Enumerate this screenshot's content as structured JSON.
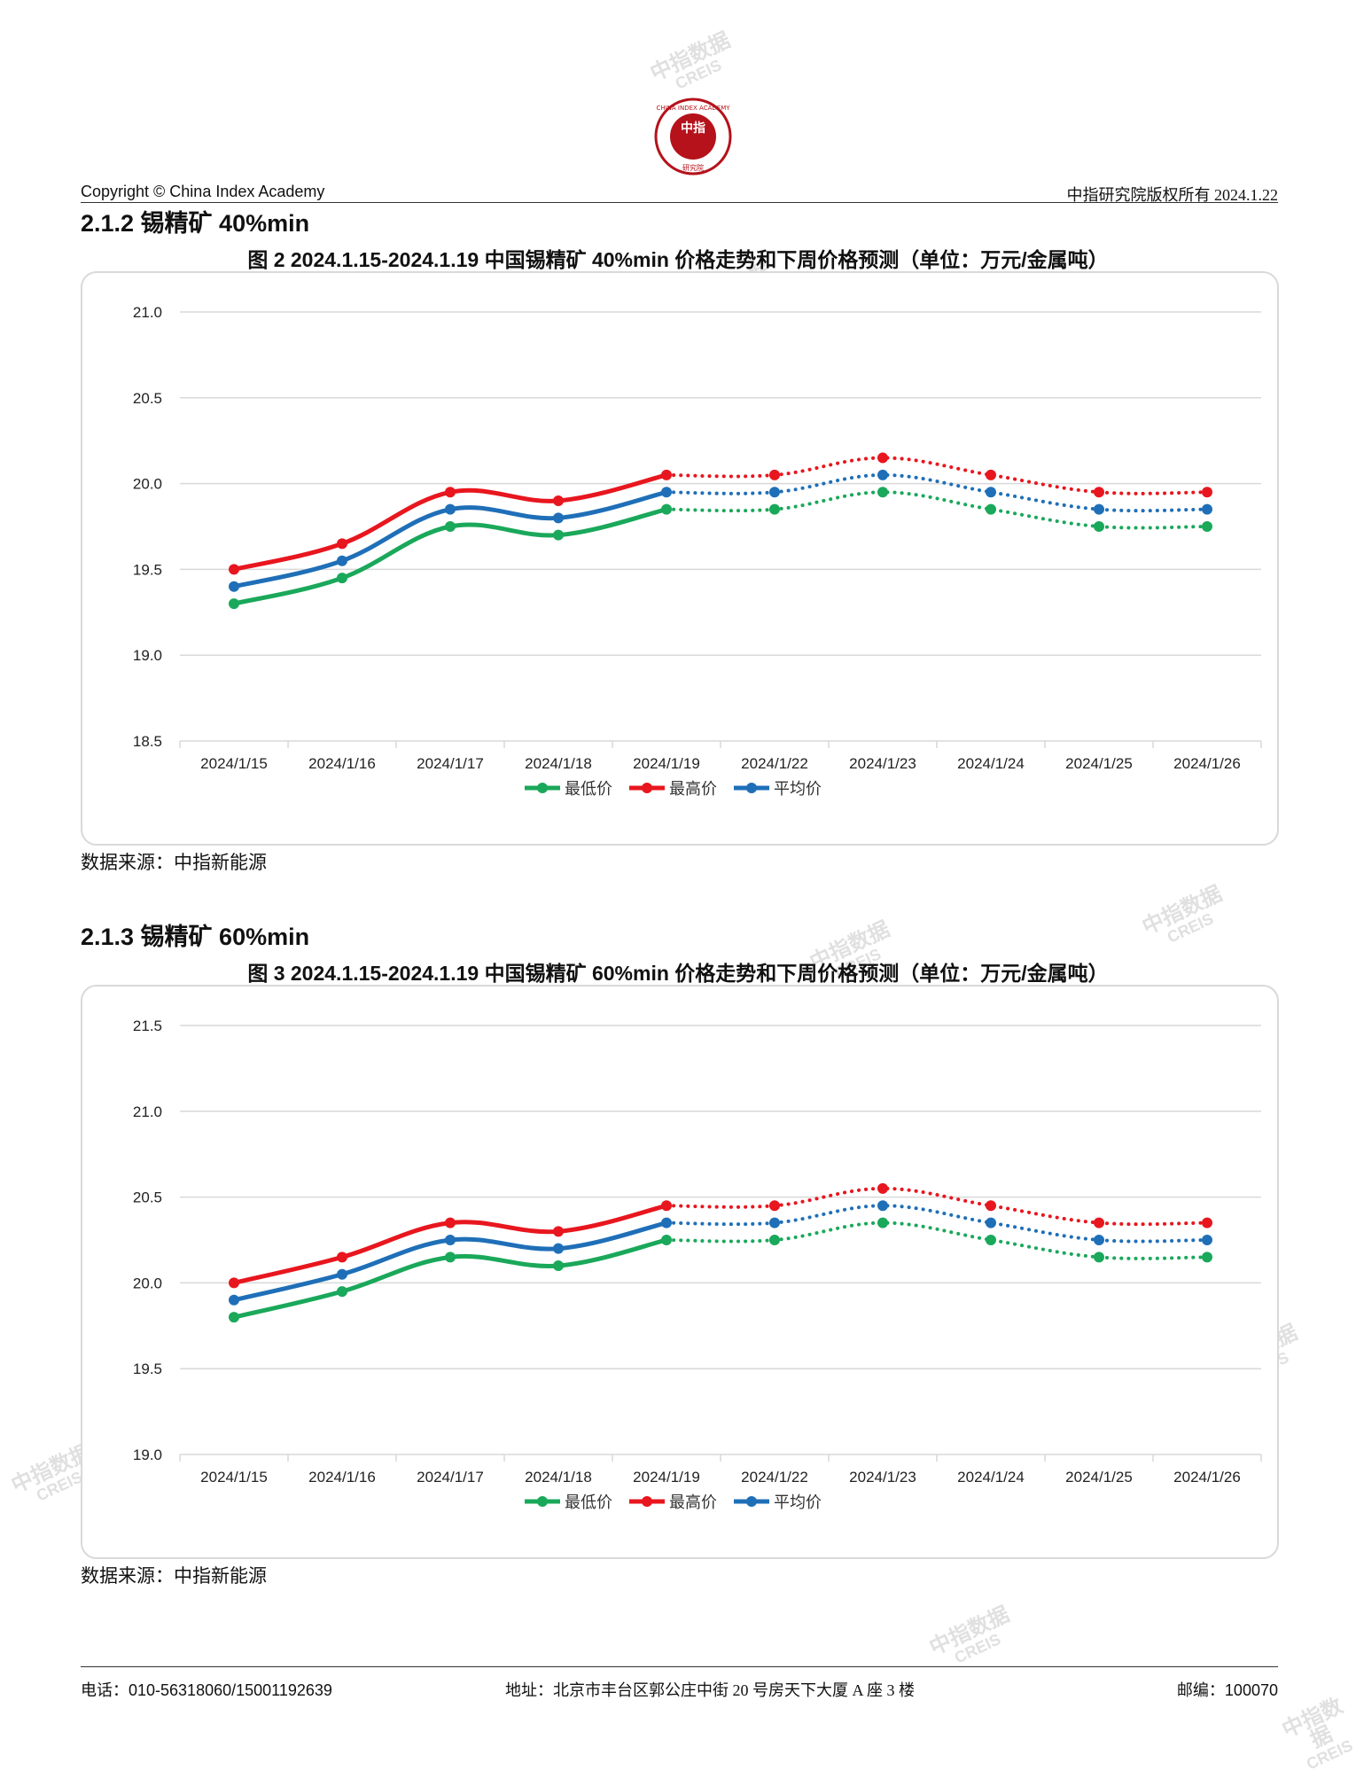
{
  "header": {
    "copyright": "Copyright © China Index Academy",
    "rights": "中指研究院版权所有 2024.1.22",
    "logo_center": "中指",
    "logo_ring": "CHINA INDEX ACADEMY",
    "logo_bottom": "研究院"
  },
  "sections": [
    {
      "title": "2.1.2 锡精矿 40%min",
      "fig_title": "图 2 2024.1.15-2024.1.19 中国锡精矿 40%min 价格走势和下周价格预测（单位：万元/金属吨）",
      "source": "数据来源：中指新能源"
    },
    {
      "title": "2.1.3 锡精矿 60%min",
      "fig_title": "图 3 2024.1.15-2024.1.19 中国锡精矿 60%min 价格走势和下周价格预测（单位：万元/金属吨）",
      "source": "数据来源：中指新能源"
    }
  ],
  "watermark": {
    "cn": "中指数据",
    "en": "CREIS"
  },
  "footer": {
    "phone": "电话：010-56318060/15001192639",
    "address": "地址：北京市丰台区郭公庄中街 20 号房天下大厦 A 座 3 楼",
    "postcode": "邮编：100070"
  },
  "colors": {
    "low": "#1aa85a",
    "high": "#e8161e",
    "avg": "#1f6fb8"
  },
  "chart_data": [
    {
      "type": "line",
      "categories": [
        "2024/1/15",
        "2024/1/16",
        "2024/1/17",
        "2024/1/18",
        "2024/1/19",
        "2024/1/22",
        "2024/1/23",
        "2024/1/24",
        "2024/1/25",
        "2024/1/26"
      ],
      "forecast_from_index": 4,
      "series": [
        {
          "name": "最低价",
          "values": [
            19.3,
            19.45,
            19.75,
            19.7,
            19.85,
            19.85,
            19.95,
            19.85,
            19.75,
            19.75
          ]
        },
        {
          "name": "最高价",
          "values": [
            19.5,
            19.65,
            19.95,
            19.9,
            20.05,
            20.05,
            20.15,
            20.05,
            19.95,
            19.95
          ]
        },
        {
          "name": "平均价",
          "values": [
            19.4,
            19.55,
            19.85,
            19.8,
            19.95,
            19.95,
            20.05,
            19.95,
            19.85,
            19.85
          ]
        }
      ],
      "ylim": [
        18.5,
        21.0
      ],
      "yticks": [
        "18.5",
        "19.0",
        "19.5",
        "20.0",
        "20.5",
        "21.0"
      ],
      "grid": true,
      "legend": "bottom"
    },
    {
      "type": "line",
      "categories": [
        "2024/1/15",
        "2024/1/16",
        "2024/1/17",
        "2024/1/18",
        "2024/1/19",
        "2024/1/22",
        "2024/1/23",
        "2024/1/24",
        "2024/1/25",
        "2024/1/26"
      ],
      "forecast_from_index": 4,
      "series": [
        {
          "name": "最低价",
          "values": [
            19.8,
            19.95,
            20.15,
            20.1,
            20.25,
            20.25,
            20.35,
            20.25,
            20.15,
            20.15
          ]
        },
        {
          "name": "最高价",
          "values": [
            20.0,
            20.15,
            20.35,
            20.3,
            20.45,
            20.45,
            20.55,
            20.45,
            20.35,
            20.35
          ]
        },
        {
          "name": "平均价",
          "values": [
            19.9,
            20.05,
            20.25,
            20.2,
            20.35,
            20.35,
            20.45,
            20.35,
            20.25,
            20.25
          ]
        }
      ],
      "ylim": [
        19.0,
        21.5
      ],
      "yticks": [
        "19.0",
        "19.5",
        "20.0",
        "20.5",
        "21.0",
        "21.5"
      ],
      "grid": true,
      "legend": "bottom"
    }
  ]
}
